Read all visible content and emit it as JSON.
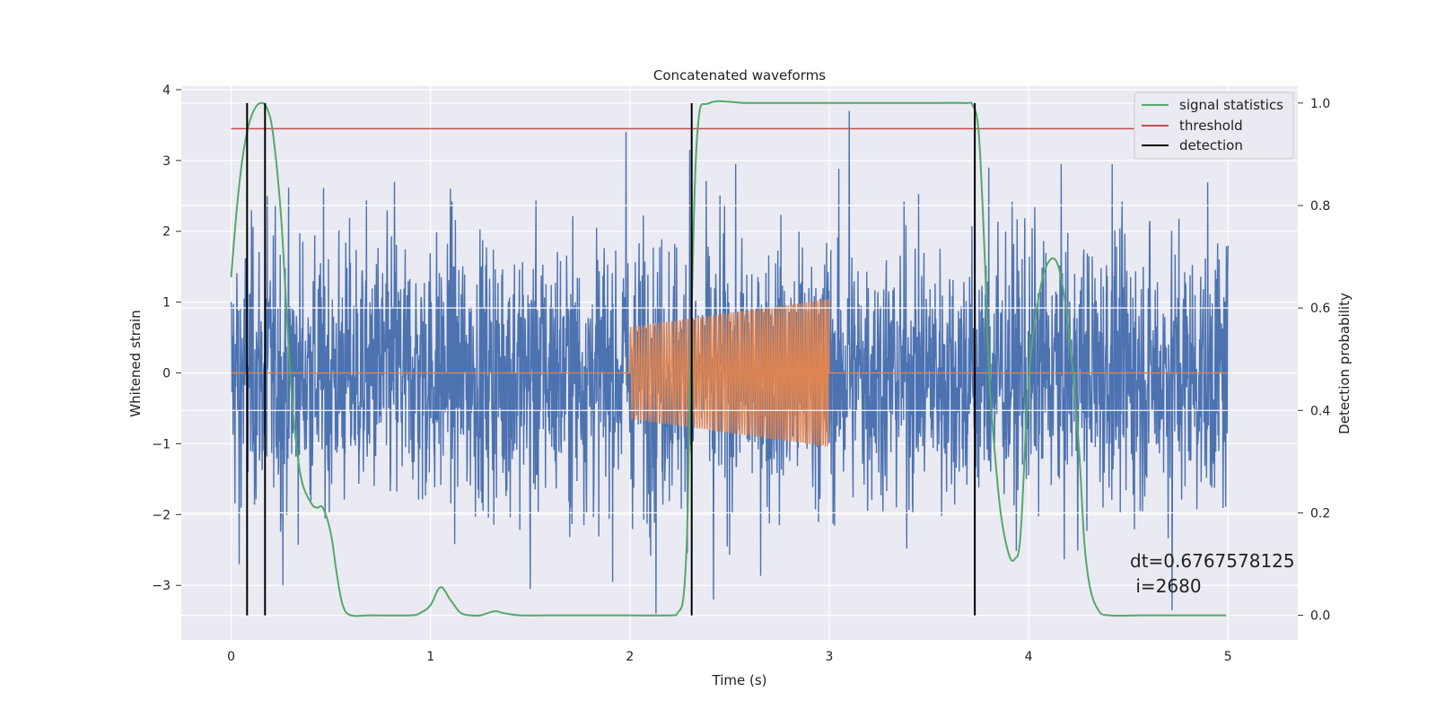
{
  "chart_data": {
    "type": "line",
    "title": "Concatenated waveforms",
    "xlabel": "Time (s)",
    "ylabel": "Whitened strain",
    "y2label": "Detection probability",
    "xlim": [
      -0.25,
      5.35
    ],
    "ylim": [
      -3.77,
      4.05
    ],
    "y2lim": [
      -0.048,
      1.033
    ],
    "xticks": [
      0,
      1,
      2,
      3,
      4,
      5
    ],
    "yticks": [
      -3,
      -2,
      -1,
      0,
      1,
      2,
      3,
      4
    ],
    "y2ticks": [
      0.0,
      0.2,
      0.4,
      0.6,
      0.8,
      1.0
    ],
    "grid": true,
    "legend_position": "top-right",
    "series": [
      {
        "name": "",
        "axis": "left",
        "color": "#4c72b0",
        "description": "noisy whitened strain, 0–5 s",
        "x_range": [
          0,
          5
        ],
        "typical_amplitude": 1.0,
        "peak_values": [
          {
            "x": 0.0,
            "y": 1.0
          },
          {
            "x": 0.04,
            "y": -2.7
          },
          {
            "x": 0.08,
            "y": 2.0
          },
          {
            "x": 0.18,
            "y": 2.5
          },
          {
            "x": 0.26,
            "y": -3.0
          },
          {
            "x": 0.82,
            "y": -3.1
          },
          {
            "x": 0.82,
            "y": 2.7
          },
          {
            "x": 1.1,
            "y": 2.6
          },
          {
            "x": 1.5,
            "y": -3.05
          },
          {
            "x": 1.98,
            "y": 3.4
          },
          {
            "x": 2.13,
            "y": -3.4
          },
          {
            "x": 2.3,
            "y": 3.15
          },
          {
            "x": 2.42,
            "y": -3.2
          },
          {
            "x": 3.1,
            "y": 3.7
          },
          {
            "x": 3.8,
            "y": 2.9
          },
          {
            "x": 4.42,
            "y": 2.95
          },
          {
            "x": 4.72,
            "y": -3.35
          },
          {
            "x": 5.0,
            "y": 1.8
          }
        ]
      },
      {
        "name": "",
        "axis": "left",
        "color": "#dd8452",
        "description": "injected chirp waveform",
        "baseline": 0,
        "chirp": {
          "x_start": 2.0,
          "x_end": 3.0,
          "amp_start": 0.65,
          "amp_end": 1.05,
          "cycles": 70
        }
      },
      {
        "name": "signal statistics",
        "axis": "right",
        "color": "#55a868",
        "x": [
          0.0,
          0.03,
          0.06,
          0.09,
          0.12,
          0.15,
          0.18,
          0.21,
          0.25,
          0.28,
          0.31,
          0.35,
          0.4,
          0.43,
          0.46,
          0.5,
          0.53,
          0.56,
          0.6,
          0.7,
          0.9,
          0.95,
          1.0,
          1.05,
          1.1,
          1.15,
          1.2,
          1.25,
          1.3,
          1.33,
          1.37,
          1.45,
          1.6,
          2.0,
          2.2,
          2.24,
          2.27,
          2.29,
          2.31,
          2.34,
          2.4,
          2.6,
          3.0,
          3.5,
          3.68,
          3.72,
          3.75,
          3.78,
          3.8,
          3.83,
          3.86,
          3.9,
          3.93,
          3.96,
          4.0,
          4.05,
          4.1,
          4.15,
          4.2,
          4.25,
          4.28,
          4.31,
          4.35,
          4.4,
          4.6,
          4.99
        ],
        "values": [
          0.66,
          0.8,
          0.9,
          0.96,
          0.99,
          1.0,
          0.99,
          0.94,
          0.78,
          0.58,
          0.4,
          0.27,
          0.22,
          0.21,
          0.21,
          0.16,
          0.08,
          0.02,
          0.0,
          0.0,
          0.0,
          0.005,
          0.02,
          0.055,
          0.03,
          0.005,
          0.0,
          0.0,
          0.006,
          0.008,
          0.004,
          0.0,
          0.0,
          0.0,
          0.0,
          0.005,
          0.04,
          0.2,
          0.6,
          0.95,
          1.0,
          1.0,
          1.0,
          1.0,
          1.0,
          0.995,
          0.94,
          0.7,
          0.48,
          0.32,
          0.2,
          0.12,
          0.11,
          0.16,
          0.46,
          0.62,
          0.69,
          0.68,
          0.56,
          0.34,
          0.14,
          0.05,
          0.01,
          0.0,
          0.0,
          0.0
        ]
      },
      {
        "name": "threshold",
        "axis": "right",
        "color": "#c44e52",
        "x": [
          0,
          5.1
        ],
        "values": [
          0.95,
          0.95
        ]
      },
      {
        "name": "detection",
        "axis": "right",
        "color": "#000000",
        "vlines": [
          0.08,
          0.17,
          2.31,
          3.73
        ],
        "ymin": 0.0,
        "ymax": 1.0
      }
    ],
    "annotation": "dt=0.6767578125\n i=2680"
  }
}
